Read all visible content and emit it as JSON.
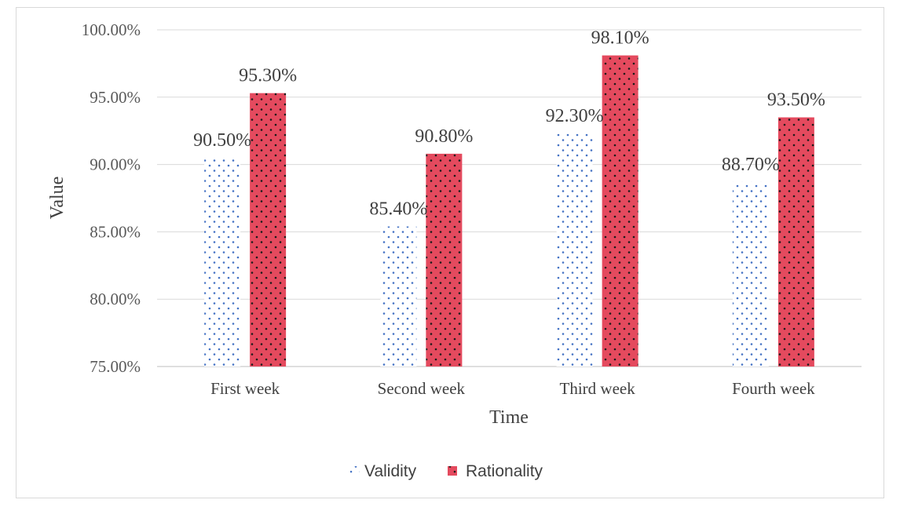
{
  "chart_data": {
    "type": "bar",
    "xlabel": "Time",
    "ylabel": "Value",
    "categories": [
      "First week",
      "Second week",
      "Third week",
      "Fourth week"
    ],
    "series": [
      {
        "name": "Validity",
        "values": [
          90.5,
          85.4,
          92.3,
          88.7
        ],
        "labels": [
          "90.50%",
          "85.40%",
          "92.30%",
          "88.70%"
        ],
        "color": "#4472c4"
      },
      {
        "name": "Rationality",
        "values": [
          95.3,
          90.8,
          98.1,
          93.5
        ],
        "labels": [
          "95.30%",
          "90.80%",
          "98.10%",
          "93.50%"
        ],
        "color": "#e44a5e"
      }
    ],
    "ylim": [
      75,
      100
    ],
    "yticks": [
      75,
      80,
      85,
      90,
      95,
      100
    ],
    "ytick_labels": [
      "75.00%",
      "80.00%",
      "85.00%",
      "90.00%",
      "95.00%",
      "100.00%"
    ],
    "grid": true,
    "legend_position": "bottom"
  }
}
